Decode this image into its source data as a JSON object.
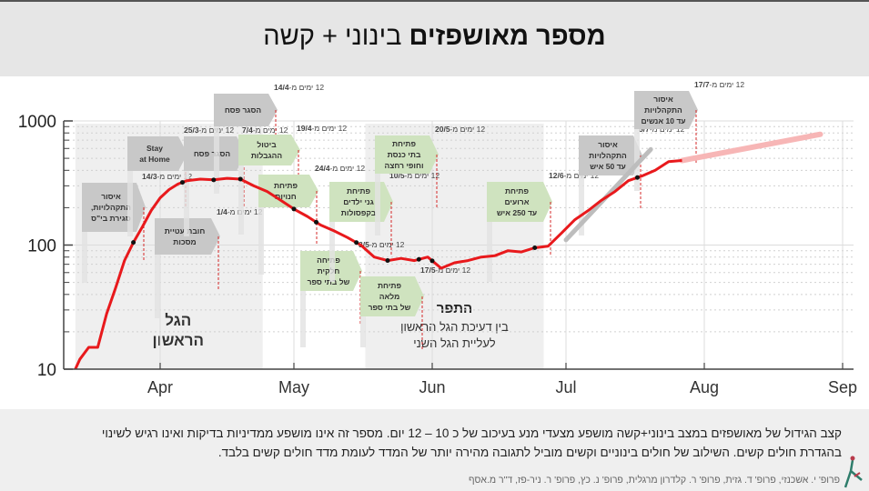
{
  "header": {
    "title_bold": "מספר מאושפזים",
    "title_rest": "בינוני + קשה"
  },
  "footer": {
    "line1": "קצב הגידול של מאושפזים במצב בינוני+קשה מושפע מצעדי מנע בעיכוב של כ 10 – 12 יום. מספר זה אינו מושפע ממדיניות בדיקות ואינו רגיש לשינוי",
    "line2": "בהגדרת חולים קשים. השילוב של חולים בינוניים וקשים מוביל לתגובה מהירה יותר של המדד לעומת מדד חולים קשים בלבד.",
    "credits": "פרופ' י. אשכנזי, פרופ' ד. גזית, פרופ' ר. קלדרון מרגלית, פרופ' נ. כץ, פרופ' ר. ניר-פז, ד\"ר מ.אסף"
  },
  "chart_data": {
    "type": "line",
    "title": "מספר מאושפזים בינוני + קשה",
    "xlabel": "",
    "ylabel": "",
    "yscale": "log",
    "ylim": [
      10,
      1000
    ],
    "y_ticks": [
      "10",
      "100",
      "1000"
    ],
    "x_ticks": [
      "Apr",
      "May",
      "Jun",
      "Jul",
      "Aug",
      "Sep"
    ],
    "grid": true,
    "colors": {
      "line": "#e8191c",
      "projection": "#f7b6b6",
      "trend": "#bdbdbd",
      "marker": "#111111",
      "event_gray": "#c8c8c8",
      "event_green": "#cfe3bf"
    },
    "regions": [
      {
        "label": "הגל\nהראשון",
        "from": "2020-03-13",
        "to": "2020-04-24"
      },
      {
        "label": "התפר",
        "sublabel": "בין דעיכת הגל הראשון\nלעליית הגל השני",
        "from": "2020-05-17",
        "to": "2020-06-26"
      }
    ],
    "series": [
      {
        "name": "מאושפזים בינוני + קשה",
        "x": [
          "2020-03-13",
          "2020-03-14",
          "2020-03-16",
          "2020-03-18",
          "2020-03-20",
          "2020-03-22",
          "2020-03-24",
          "2020-03-26",
          "2020-03-28",
          "2020-03-30",
          "2020-04-01",
          "2020-04-03",
          "2020-04-05",
          "2020-04-07",
          "2020-04-10",
          "2020-04-13",
          "2020-04-16",
          "2020-04-19",
          "2020-04-22",
          "2020-04-25",
          "2020-04-28",
          "2020-05-01",
          "2020-05-04",
          "2020-05-07",
          "2020-05-10",
          "2020-05-13",
          "2020-05-16",
          "2020-05-19",
          "2020-05-22",
          "2020-05-25",
          "2020-05-28",
          "2020-05-31",
          "2020-06-03",
          "2020-06-06",
          "2020-06-09",
          "2020-06-12",
          "2020-06-15",
          "2020-06-18",
          "2020-06-21",
          "2020-06-24",
          "2020-06-27",
          "2020-06-30",
          "2020-07-03",
          "2020-07-06",
          "2020-07-09",
          "2020-07-12",
          "2020-07-15",
          "2020-07-18",
          "2020-07-21",
          "2020-07-24",
          "2020-07-27"
        ],
        "values": [
          10,
          12,
          15,
          15,
          28,
          45,
          75,
          105,
          140,
          190,
          240,
          280,
          310,
          330,
          340,
          335,
          345,
          340,
          300,
          270,
          230,
          195,
          170,
          145,
          130,
          115,
          100,
          80,
          75,
          78,
          75,
          80,
          65,
          72,
          75,
          80,
          82,
          90,
          88,
          95,
          98,
          125,
          160,
          190,
          230,
          270,
          330,
          360,
          400,
          470,
          480
        ]
      },
      {
        "name": "תחזית",
        "x": [
          "2020-07-27",
          "2020-08-27"
        ],
        "values": [
          480,
          780
        ]
      }
    ],
    "events": [
      {
        "date": "14/3",
        "prefix": "12 ימים מ-",
        "label": "איסור\nהתקהלויות,\nסגירת בי\"ס",
        "color": "gray"
      },
      {
        "date": "25/3",
        "prefix": "12 ימים מ-",
        "label": "Stay\nat Home",
        "color": "gray"
      },
      {
        "date": "1/4",
        "prefix": "12 ימים מ-",
        "label": "חובת עטיית\nמסכות",
        "color": "gray"
      },
      {
        "date": "7/4",
        "prefix": "12 ימים מ-",
        "label": "הסגר פסח",
        "color": "gray"
      },
      {
        "date": "14/4",
        "prefix": "12 ימים מ-",
        "label": "הסגר פסח",
        "color": "gray"
      },
      {
        "date": "19/4",
        "prefix": "12 ימים מ-",
        "label": "ביטול\nההגבלות",
        "color": "green"
      },
      {
        "date": "24/4",
        "prefix": "12 ימים מ-",
        "label": "פתיחת\nחנויות",
        "color": "green"
      },
      {
        "date": "3/5",
        "prefix": "12 ימים מ-",
        "label": "פתיחה\nחלקית\nשל בתי ספר",
        "color": "green"
      },
      {
        "date": "10/5",
        "prefix": "12 ימים מ-",
        "label": "פתיחת\nגני ילדים\nבקפסולות",
        "color": "green"
      },
      {
        "date": "17/5",
        "prefix": "12 ימים מ-",
        "label": "פתיחת\nמלאה\nשל בתי ספר",
        "color": "green"
      },
      {
        "date": "20/5",
        "prefix": "12 ימים מ-",
        "label": "פתיחת\nבתי כנסת\nוחופי רחצה",
        "color": "green"
      },
      {
        "date": "12/6",
        "prefix": "12 ימים מ-",
        "label": "פתיחת\nארועים\nעד 250 איש",
        "color": "green"
      },
      {
        "date": "5/7",
        "prefix": "12 ימים מ-",
        "label": "איסור\nהתקהלויות\nעד 50 איש",
        "color": "gray"
      },
      {
        "date": "17/7",
        "prefix": "12 ימים מ-",
        "label": "איסור\nהתקהלויות\nעד 10 אנשים",
        "color": "gray"
      }
    ]
  }
}
